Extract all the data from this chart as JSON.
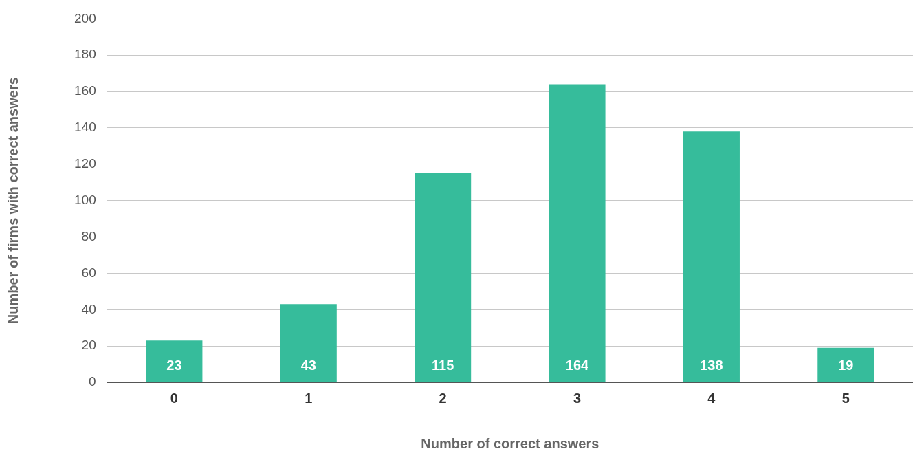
{
  "chart_data": {
    "type": "bar",
    "xlabel": "Number of correct answers",
    "ylabel": "Number of firms with correct answers",
    "categories": [
      "0",
      "1",
      "2",
      "3",
      "4",
      "5"
    ],
    "values": [
      23,
      43,
      115,
      164,
      138,
      19
    ],
    "color": "#36bc9b",
    "ylim": [
      0,
      200
    ],
    "yticks": [
      0,
      20,
      40,
      60,
      80,
      100,
      120,
      140,
      160,
      180,
      200
    ],
    "grid": "y",
    "data_labels": true
  }
}
